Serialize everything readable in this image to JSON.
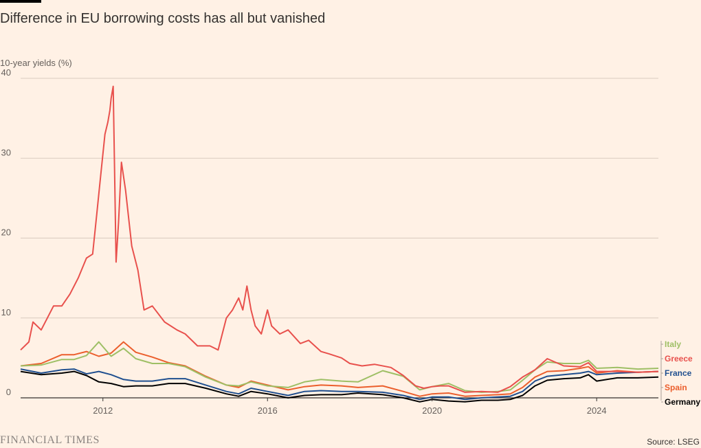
{
  "header": {
    "title": "Difference in EU borrowing costs has all but vanished",
    "ylabel": "10-year yields (%)"
  },
  "footer": {
    "brand": "FINANCIAL TIMES",
    "source": "Source: LSEG"
  },
  "chart_data": {
    "type": "line",
    "ylabel": "10-year yields (%)",
    "xlim": [
      2010.0,
      2025.5
    ],
    "ylim": [
      0,
      40
    ],
    "yticks": [
      0,
      10,
      20,
      30,
      40
    ],
    "xticks": [
      2012,
      2016,
      2020,
      2024
    ],
    "grid": true,
    "legend": "right",
    "series": [
      {
        "name": "Germany",
        "color": "#000000",
        "x": [
          2010.0,
          2010.5,
          2011.0,
          2011.3,
          2011.6,
          2011.9,
          2012.2,
          2012.5,
          2012.8,
          2013.2,
          2013.6,
          2014.0,
          2014.5,
          2015.0,
          2015.3,
          2015.6,
          2016.0,
          2016.5,
          2016.9,
          2017.3,
          2017.8,
          2018.2,
          2018.8,
          2019.3,
          2019.7,
          2020.0,
          2020.4,
          2020.8,
          2021.2,
          2021.6,
          2021.9,
          2022.2,
          2022.5,
          2022.8,
          2023.2,
          2023.6,
          2023.8,
          2024.0,
          2024.5,
          2025.0,
          2025.5
        ],
        "y": [
          3.3,
          2.9,
          3.1,
          3.3,
          2.8,
          2.0,
          1.8,
          1.4,
          1.5,
          1.5,
          1.8,
          1.8,
          1.2,
          0.5,
          0.2,
          0.8,
          0.5,
          0.0,
          0.3,
          0.4,
          0.4,
          0.6,
          0.4,
          0.0,
          -0.5,
          -0.2,
          -0.4,
          -0.5,
          -0.3,
          -0.3,
          -0.2,
          0.3,
          1.5,
          2.2,
          2.4,
          2.5,
          2.9,
          2.1,
          2.5,
          2.5,
          2.6
        ]
      },
      {
        "name": "France",
        "color": "#1f4f8f",
        "x": [
          2010.0,
          2010.5,
          2011.0,
          2011.3,
          2011.6,
          2011.9,
          2012.2,
          2012.5,
          2012.8,
          2013.2,
          2013.6,
          2014.0,
          2014.5,
          2015.0,
          2015.3,
          2015.6,
          2016.0,
          2016.5,
          2016.9,
          2017.3,
          2017.8,
          2018.2,
          2018.8,
          2019.3,
          2019.7,
          2020.0,
          2020.4,
          2020.8,
          2021.2,
          2021.6,
          2021.9,
          2022.2,
          2022.5,
          2022.8,
          2023.2,
          2023.6,
          2023.8,
          2024.0,
          2024.5,
          2025.0,
          2025.5
        ],
        "y": [
          3.6,
          3.1,
          3.5,
          3.6,
          3.0,
          3.3,
          2.9,
          2.3,
          2.1,
          2.1,
          2.4,
          2.4,
          1.6,
          0.8,
          0.5,
          1.2,
          0.8,
          0.3,
          0.8,
          0.9,
          0.8,
          0.8,
          0.7,
          0.3,
          -0.2,
          0.1,
          0.1,
          -0.2,
          0.0,
          0.1,
          0.2,
          0.8,
          2.1,
          2.7,
          2.9,
          3.1,
          3.3,
          2.9,
          3.1,
          3.2,
          3.3
        ]
      },
      {
        "name": "Spain",
        "color": "#eb5e2c",
        "x": [
          2010.0,
          2010.5,
          2011.0,
          2011.3,
          2011.6,
          2011.9,
          2012.2,
          2012.5,
          2012.8,
          2013.2,
          2013.6,
          2014.0,
          2014.5,
          2015.0,
          2015.3,
          2015.6,
          2016.0,
          2016.5,
          2016.9,
          2017.3,
          2017.8,
          2018.2,
          2018.8,
          2019.3,
          2019.7,
          2020.0,
          2020.4,
          2020.8,
          2021.2,
          2021.6,
          2021.9,
          2022.2,
          2022.5,
          2022.8,
          2023.2,
          2023.6,
          2023.8,
          2024.0,
          2024.5,
          2025.0,
          2025.5
        ],
        "y": [
          4.0,
          4.3,
          5.4,
          5.4,
          5.8,
          5.2,
          5.6,
          7.0,
          5.7,
          5.1,
          4.4,
          4.0,
          2.7,
          1.6,
          1.3,
          2.1,
          1.6,
          1.0,
          1.4,
          1.6,
          1.5,
          1.3,
          1.5,
          0.8,
          0.2,
          0.5,
          0.6,
          0.2,
          0.3,
          0.4,
          0.5,
          1.3,
          2.6,
          3.3,
          3.4,
          3.7,
          3.9,
          3.1,
          3.4,
          3.2,
          3.3
        ]
      },
      {
        "name": "Italy",
        "color": "#9ebf65",
        "x": [
          2010.0,
          2010.5,
          2011.0,
          2011.3,
          2011.6,
          2011.9,
          2012.2,
          2012.5,
          2012.8,
          2013.2,
          2013.6,
          2014.0,
          2014.5,
          2015.0,
          2015.3,
          2015.6,
          2016.0,
          2016.5,
          2016.9,
          2017.3,
          2017.8,
          2018.2,
          2018.8,
          2019.3,
          2019.7,
          2020.0,
          2020.4,
          2020.8,
          2021.2,
          2021.6,
          2021.9,
          2022.2,
          2022.5,
          2022.8,
          2023.2,
          2023.6,
          2023.8,
          2024.0,
          2024.5,
          2025.0,
          2025.5
        ],
        "y": [
          4.0,
          4.1,
          4.8,
          4.8,
          5.3,
          7.0,
          5.2,
          6.2,
          4.9,
          4.3,
          4.3,
          3.9,
          2.6,
          1.6,
          1.5,
          2.0,
          1.5,
          1.3,
          2.0,
          2.3,
          2.1,
          2.0,
          3.4,
          2.7,
          1.0,
          1.4,
          1.8,
          0.9,
          0.7,
          0.8,
          1.0,
          2.2,
          3.5,
          4.5,
          4.3,
          4.3,
          4.7,
          3.7,
          3.8,
          3.6,
          3.7
        ]
      },
      {
        "name": "Greece",
        "color": "#e8504c",
        "x": [
          2010.0,
          2010.2,
          2010.3,
          2010.5,
          2010.65,
          2010.8,
          2011.0,
          2011.2,
          2011.4,
          2011.6,
          2011.75,
          2011.85,
          2011.95,
          2012.05,
          2012.12,
          2012.17,
          2012.2,
          2012.25,
          2012.32,
          2012.38,
          2012.45,
          2012.55,
          2012.7,
          2012.85,
          2013.0,
          2013.2,
          2013.5,
          2013.8,
          2014.0,
          2014.3,
          2014.6,
          2014.8,
          2015.0,
          2015.15,
          2015.3,
          2015.4,
          2015.5,
          2015.6,
          2015.7,
          2015.85,
          2016.0,
          2016.1,
          2016.3,
          2016.5,
          2016.8,
          2017.0,
          2017.3,
          2017.5,
          2017.8,
          2018.0,
          2018.3,
          2018.6,
          2019.0,
          2019.3,
          2019.6,
          2019.8,
          2020.0,
          2020.2,
          2020.4,
          2020.8,
          2021.2,
          2021.6,
          2021.9,
          2022.2,
          2022.5,
          2022.8,
          2023.2,
          2023.6,
          2023.8,
          2024.0,
          2024.5,
          2025.0,
          2025.5
        ],
        "y": [
          6.0,
          7.0,
          9.5,
          8.5,
          10.0,
          11.5,
          11.5,
          13.0,
          15.0,
          17.5,
          18.0,
          23.0,
          28.0,
          33.0,
          34.5,
          36.0,
          37.5,
          39.0,
          17.0,
          22.0,
          29.5,
          26.0,
          19.0,
          16.0,
          11.0,
          11.5,
          9.5,
          8.5,
          8.0,
          6.5,
          6.5,
          6.0,
          10.0,
          11.0,
          12.5,
          11.0,
          14.0,
          11.0,
          9.0,
          8.0,
          11.0,
          9.0,
          8.0,
          8.5,
          6.8,
          7.2,
          5.8,
          5.5,
          5.0,
          4.3,
          4.0,
          4.2,
          3.8,
          2.8,
          1.5,
          1.2,
          1.4,
          1.5,
          1.5,
          0.7,
          0.8,
          0.7,
          1.4,
          2.6,
          3.5,
          4.9,
          4.0,
          3.9,
          4.4,
          3.3,
          3.3,
          3.2,
          3.3
        ]
      }
    ]
  }
}
